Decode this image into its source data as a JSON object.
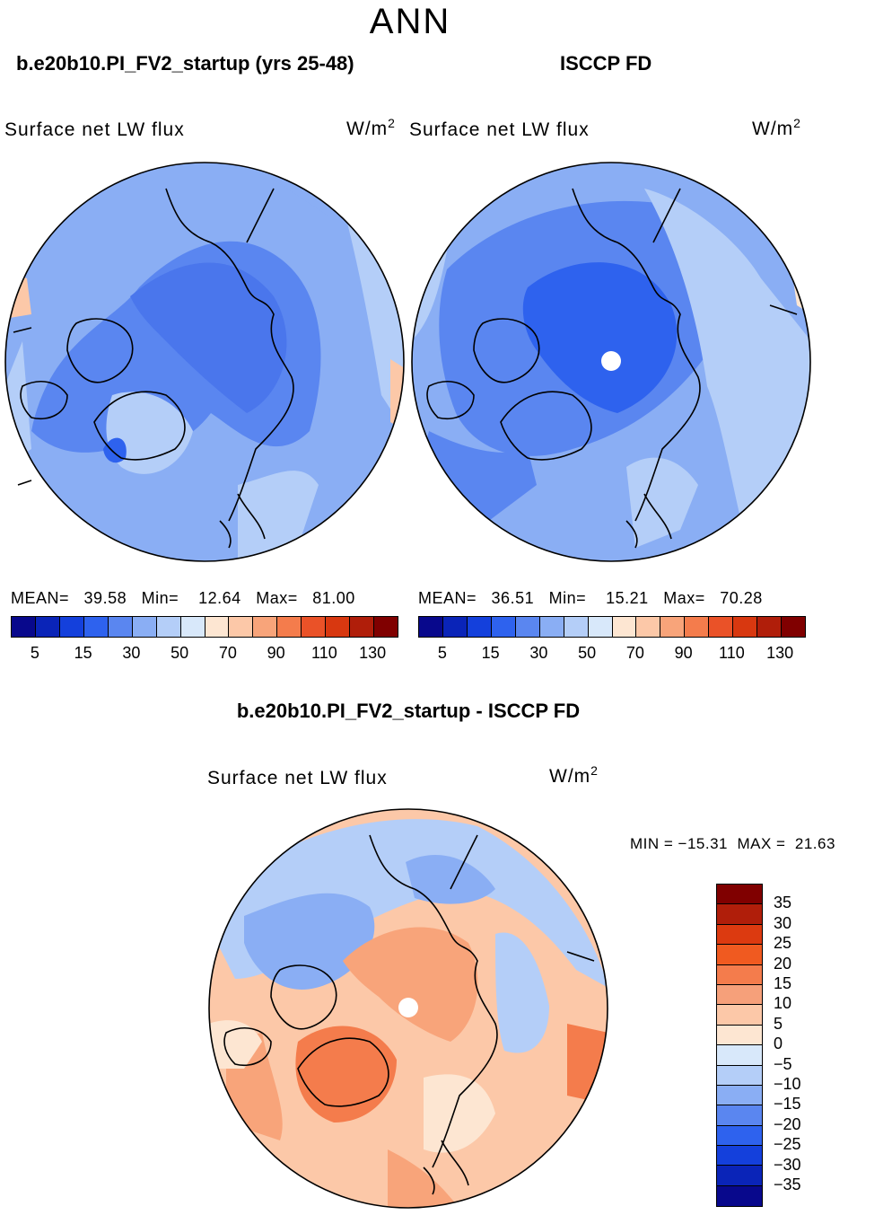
{
  "season": "ANN",
  "panels": [
    {
      "case_title": "b.e20b10.PI_FV2_startup (yrs 25-48)",
      "variable": "Surface net LW flux",
      "units": "W/m",
      "units_exp": "2",
      "mean_label": "MEAN=",
      "mean": "39.58",
      "min_label": "Min=",
      "min": "12.64",
      "max_label": "Max=",
      "max": "81.00"
    },
    {
      "case_title": "ISCCP FD",
      "variable": "Surface net LW flux",
      "units": "W/m",
      "units_exp": "2",
      "mean_label": "MEAN=",
      "mean": "36.51",
      "min_label": "Min=",
      "min": "15.21",
      "max_label": "Max=",
      "max": "70.28"
    }
  ],
  "diff": {
    "title": "b.e20b10.PI_FV2_startup - ISCCP FD",
    "variable": "Surface net LW flux",
    "units": "W/m",
    "units_exp": "2",
    "minmax": "MIN = −15.31  MAX =  21.63"
  },
  "abs_colorbar": {
    "colors": [
      "#08088c",
      "#0a24b8",
      "#1440dc",
      "#2e62ee",
      "#5a86f0",
      "#8aaef4",
      "#b4cef8",
      "#d8e8fa",
      "#fde6d2",
      "#fcc8a8",
      "#f8a47a",
      "#f47c4c",
      "#ea5228",
      "#d83810",
      "#b01e0a",
      "#800000"
    ],
    "tick_labels": [
      "5",
      "15",
      "30",
      "50",
      "70",
      "90",
      "110",
      "130"
    ]
  },
  "diff_colorbar": {
    "colors": [
      "#800000",
      "#b01e0a",
      "#dc3a10",
      "#f05a20",
      "#f47c4c",
      "#f6a07a",
      "#fcc8a8",
      "#fde6d2",
      "#d8e8fa",
      "#b4cef8",
      "#8aaef4",
      "#5a86f0",
      "#2e62ee",
      "#1440dc",
      "#0a24b8",
      "#08088c"
    ],
    "tick_labels": [
      "35",
      "30",
      "25",
      "20",
      "15",
      "10",
      "5",
      "0",
      "−5",
      "−10",
      "−15",
      "−20",
      "−25",
      "−30",
      "−35"
    ]
  }
}
